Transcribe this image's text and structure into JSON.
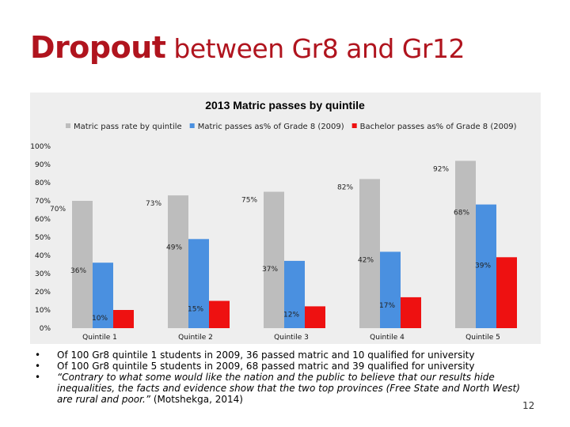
{
  "slide": {
    "title_bold": "Dropout",
    "title_rest": "between Gr8 and Gr12",
    "bullets": [
      {
        "text": "Of 100 Gr8 quintile 1 students in 2009, 36 passed matric and 10 qualified for university"
      },
      {
        "text": "Of 100 Gr8 quintile 5 students in 2009, 68 passed matric and 39 qualified for university"
      },
      {
        "quote": "“Contrary to what some would like the nation and the public to believe that our results hide inequalities, the facts and evidence show that the two top provinces (Free State and North West) are rural and poor.”",
        "source": " (Motshekga, 2014)"
      }
    ],
    "bullet_glyph": "•",
    "page_number": "12"
  },
  "chart_data": {
    "type": "bar",
    "title": "2013 Matric passes by quintile",
    "categories": [
      "Quintile 1",
      "Quintile  2",
      "Quintile 3",
      "Quintile 4",
      "Quintile 5"
    ],
    "series": [
      {
        "name": "Matric pass rate by quintile",
        "values": [
          70,
          73,
          75,
          82,
          92
        ],
        "labels": [
          "70%",
          "73%",
          "75%",
          "82%",
          "92%"
        ],
        "color": "#bdbdbd"
      },
      {
        "name": "Matric passes as% of Grade 8 (2009)",
        "values": [
          36,
          49,
          37,
          42,
          68
        ],
        "labels": [
          "36%",
          "49%",
          "37%",
          "42%",
          "68%"
        ],
        "color": "#4a90e0"
      },
      {
        "name": "Bachelor passes as% of Grade 8 (2009)",
        "values": [
          10,
          15,
          12,
          17,
          39
        ],
        "labels": [
          "10%",
          "15%",
          "12%",
          "17%",
          "39%"
        ],
        "color": "#ee1111"
      }
    ],
    "y_ticks": [
      "0%",
      "10%",
      "20%",
      "30%",
      "40%",
      "50%",
      "60%",
      "70%",
      "80%",
      "90%",
      "100%"
    ],
    "ylim": [
      0,
      100
    ],
    "grid": false,
    "legend": "top"
  }
}
